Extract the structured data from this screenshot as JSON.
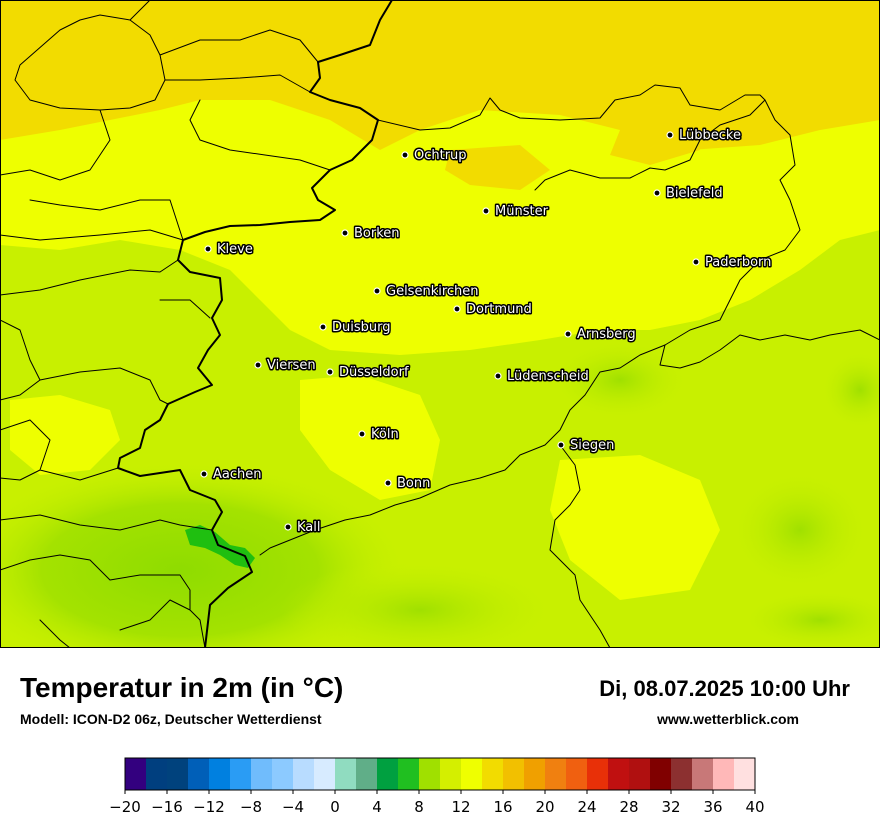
{
  "header": {
    "title": "Temperatur in 2m (in °C)",
    "subtitle": "Modell: ICON-D2 06z, Deutscher Wetterdienst",
    "datetime": "Di, 08.07.2025 10:00 Uhr",
    "website": "www.wetterblick.com"
  },
  "map": {
    "cities": [
      {
        "name": "Lübbecke"
      },
      {
        "name": "Ochtrup"
      },
      {
        "name": "Bielefeld"
      },
      {
        "name": "Münster"
      },
      {
        "name": "Borken"
      },
      {
        "name": "Kleve"
      },
      {
        "name": "Paderborn"
      },
      {
        "name": "Gelsenkirchen"
      },
      {
        "name": "Dortmund"
      },
      {
        "name": "Duisburg"
      },
      {
        "name": "Arnsberg"
      },
      {
        "name": "Viersen"
      },
      {
        "name": "Düsseldorf"
      },
      {
        "name": "Lüdenscheid"
      },
      {
        "name": "Köln"
      },
      {
        "name": "Siegen"
      },
      {
        "name": "Aachen"
      },
      {
        "name": "Bonn"
      },
      {
        "name": "Kall"
      }
    ],
    "dominant_colors": {
      "warm_north": "#f2dc00",
      "mid": "#eeff00",
      "light_green": "#c8f000",
      "green": "#9be000",
      "dark_green": "#1fbf10"
    }
  },
  "legend": {
    "unit": "°C",
    "tick_labels": [
      "−20",
      "−16",
      "−12",
      "−8",
      "−4",
      "0",
      "4",
      "8",
      "12",
      "16",
      "20",
      "24",
      "28",
      "32",
      "36",
      "40"
    ],
    "colors": [
      "#33007f",
      "#003f7f",
      "#00427d",
      "#005fb8",
      "#0080e0",
      "#2a9cf4",
      "#70bcfc",
      "#8ccaff",
      "#b8dcff",
      "#d7ebff",
      "#90dcc0",
      "#60ae88",
      "#00a040",
      "#20bf20",
      "#a0e000",
      "#d4ef00",
      "#efff00",
      "#f2dc00",
      "#f2c000",
      "#f0a000",
      "#f08010",
      "#f06010",
      "#e83008",
      "#c01010",
      "#b01010",
      "#800000",
      "#8c3030",
      "#c87878",
      "#ffb8b8",
      "#ffe0e0"
    ]
  }
}
